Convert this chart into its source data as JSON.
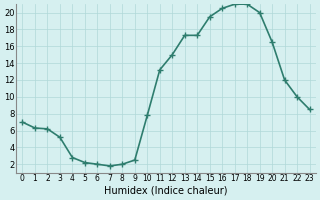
{
  "x": [
    0,
    1,
    2,
    3,
    4,
    5,
    6,
    7,
    8,
    9,
    10,
    11,
    12,
    13,
    14,
    15,
    16,
    17,
    18,
    19,
    20,
    21,
    22,
    23
  ],
  "y": [
    7,
    6.3,
    6.2,
    5.2,
    2.8,
    2.2,
    2.0,
    1.8,
    2.0,
    2.5,
    7.8,
    13.2,
    15.0,
    17.3,
    17.3,
    19.5,
    20.5,
    21.0,
    21.0,
    20.0,
    16.5,
    12.0,
    10.0,
    8.5
  ],
  "line_color": "#2e7d6e",
  "marker": "+",
  "markersize": 5,
  "linewidth": 1.2,
  "background_color": "#d6f0f0",
  "grid_color": "#b0d8d8",
  "xlabel": "Humidex (Indice chaleur)",
  "ylabel": "",
  "xlim": [
    -0.5,
    23.5
  ],
  "ylim": [
    1,
    21
  ],
  "yticks": [
    2,
    4,
    6,
    8,
    10,
    12,
    14,
    16,
    18,
    20
  ],
  "xticks": [
    0,
    1,
    2,
    3,
    4,
    5,
    6,
    7,
    8,
    9,
    10,
    11,
    12,
    13,
    14,
    15,
    16,
    17,
    18,
    19,
    20,
    21,
    22,
    23
  ],
  "xtick_fontsize": 5.5,
  "ytick_fontsize": 6,
  "xlabel_fontsize": 7
}
